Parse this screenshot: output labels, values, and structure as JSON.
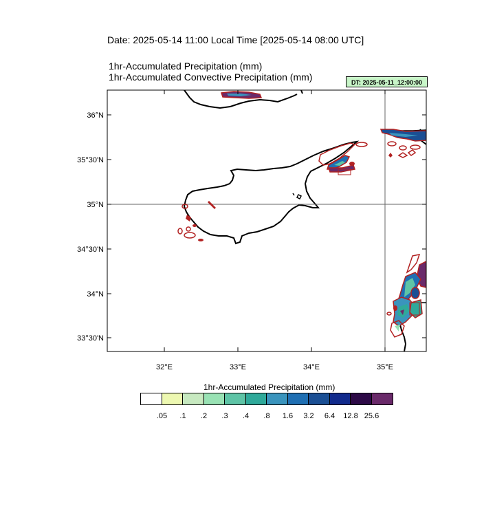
{
  "header": {
    "date_line": "Date: 2025-05-14  11:00 Local Time [2025-05-14  08:00 UTC]",
    "subtitle_1": "1hr-Accumulated Precipitation   (mm)",
    "subtitle_2": "1hr-Accumulated Convective Precipitation   (mm)",
    "dt_badge": "DT: 2025-05-11_12:00:00"
  },
  "map": {
    "lon_labels": [
      "32°E",
      "33°E",
      "34°E",
      "35°E"
    ],
    "lat_labels": [
      "36°N",
      "35°30'N",
      "35°N",
      "34°30'N",
      "34°N",
      "33°30'N"
    ],
    "gridlines": [
      "35°N",
      "35°E"
    ]
  },
  "colorbar": {
    "title": "1hr-Accumulated Precipitation  (mm)",
    "labels": [
      ".05",
      ".1",
      ".2",
      ".3",
      ".4",
      ".8",
      "1.6",
      "3.2",
      "6.4",
      "12.8",
      "25.6"
    ],
    "colors": [
      "#ffffff",
      "#edf8b1",
      "#c7e9c0",
      "#99e2b4",
      "#5ec4a6",
      "#2fa99a",
      "#3a94bd",
      "#1f6fb3",
      "#1b4f94",
      "#112a8c",
      "#2d0a47",
      "#6a2a6a"
    ]
  }
}
